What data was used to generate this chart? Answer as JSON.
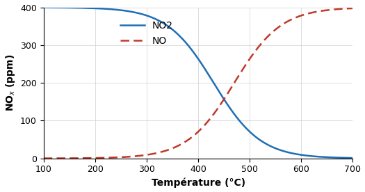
{
  "title": "",
  "xlabel": "Température (°C)",
  "ylabel": "NO$_x$ (ppm)",
  "xlim": [
    100,
    700
  ],
  "ylim": [
    0,
    400
  ],
  "xticks": [
    100,
    200,
    300,
    400,
    500,
    600,
    700
  ],
  "yticks": [
    0,
    100,
    200,
    300,
    400
  ],
  "no2_color": "#1f6eb5",
  "no_color": "#c0392b",
  "no2_label": "NO2",
  "no_label": "NO",
  "no2_midpoint": 430,
  "no2_steepness": 0.022,
  "no_midpoint": 470,
  "no_steepness": 0.022,
  "no2_max": 400,
  "no_max": 400,
  "figsize": [
    5.25,
    2.76
  ],
  "dpi": 100
}
